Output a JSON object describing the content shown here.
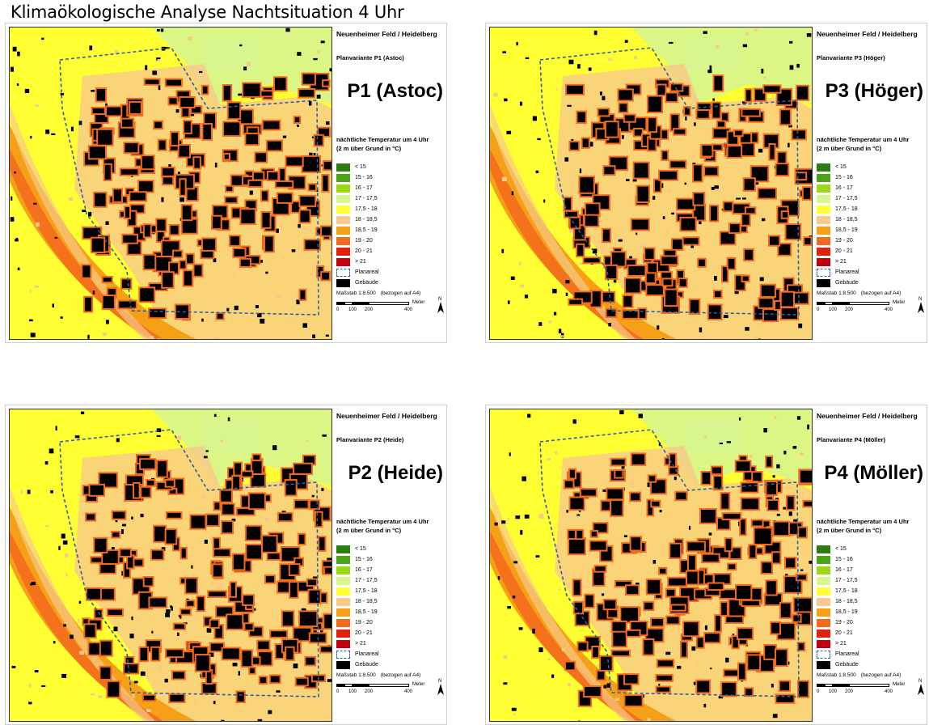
{
  "page": {
    "title": "Klimaökologische Analyse Nachtsituation 4 Uhr"
  },
  "legend": {
    "title_line1": "nächtliche Temperatur um 4 Uhr",
    "title_line2": "(2 m über Grund in °C)",
    "classes": [
      {
        "label": "< 15",
        "color": "#2e7d10"
      },
      {
        "label": "15 - 16",
        "color": "#4aa414"
      },
      {
        "label": "16 - 17",
        "color": "#9bd817"
      },
      {
        "label": "17 - 17,5",
        "color": "#d8f58e"
      },
      {
        "label": "17,5 - 18",
        "color": "#ffff33"
      },
      {
        "label": "18 - 18,5",
        "color": "#f7c98a"
      },
      {
        "label": "18,5 - 19",
        "color": "#f5a017"
      },
      {
        "label": "19 - 20",
        "color": "#f36a1d"
      },
      {
        "label": "20 - 21",
        "color": "#e3200f"
      },
      {
        "label": "> 21",
        "color": "#c0000f"
      }
    ],
    "planareal_label": "Planareal",
    "gebaeude_label": "Gebäude",
    "planareal_color": "#2b5fa8",
    "gebaeude_color": "#000000"
  },
  "scale": {
    "text": "Maßstab  1:8.500",
    "reference": "(bezogen auf A4)",
    "ticks": [
      "0",
      "100",
      "200",
      "400"
    ],
    "unit": "Meter",
    "north": "N"
  },
  "panels": [
    {
      "location": "Neuenheimer Feld / Heidelberg",
      "variant": "Planvariante P1 (Astoc)",
      "big_label": "P1 (Astoc)"
    },
    {
      "location": "Neuenheimer Feld / Heidelberg",
      "variant": "Planvariante P3 (Höger)",
      "big_label": "P3 (Höger)"
    },
    {
      "location": "Neuenheimer Feld / Heidelberg",
      "variant": "Planvariante P2 (Heide)",
      "big_label": "P2 (Heide)"
    },
    {
      "location": "Neuenheimer Feld / Heidelberg",
      "variant": "Planvariante P4 (Möller)",
      "big_label": "P4 (Möller)"
    }
  ]
}
